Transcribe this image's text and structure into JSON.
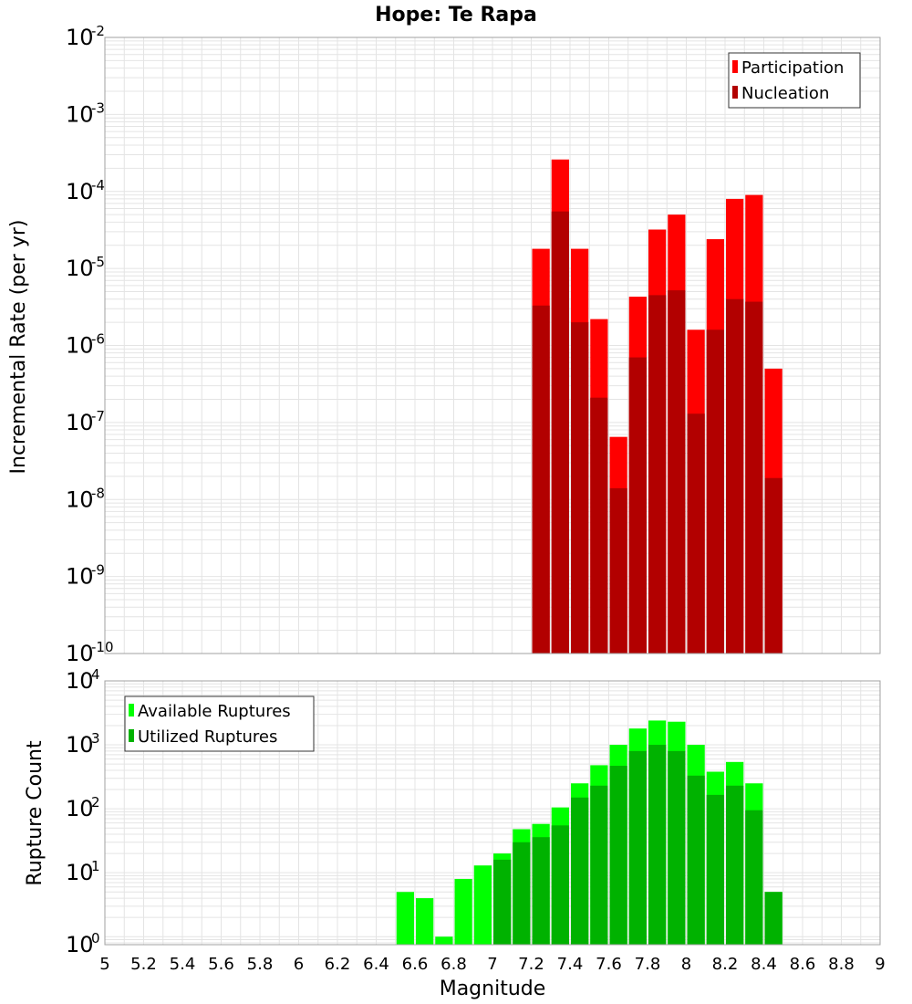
{
  "chart_data": [
    {
      "type": "bar",
      "title": "Hope: Te Rapa",
      "xlabel": "",
      "ylabel": "Incremental Rate (per yr)",
      "y_scale": "log",
      "ylim": [
        1e-10,
        0.01
      ],
      "xlim": [
        5,
        9
      ],
      "bin_width": 0.1,
      "grid": true,
      "legend_position": "top-right",
      "legend": [
        "Participation",
        "Nucleation"
      ],
      "colors": {
        "Participation": "#ff0000",
        "Nucleation": "#b20000"
      },
      "x": [
        7.25,
        7.35,
        7.45,
        7.55,
        7.65,
        7.75,
        7.85,
        7.95,
        8.05,
        8.15,
        8.25,
        8.35,
        8.45
      ],
      "series": [
        {
          "name": "Participation",
          "values": [
            1.8e-05,
            0.00026,
            1.8e-05,
            2.2e-06,
            6.5e-08,
            4.3e-06,
            3.2e-05,
            5e-05,
            1.6e-06,
            2.4e-05,
            8e-05,
            9e-05,
            5e-07
          ]
        },
        {
          "name": "Nucleation",
          "values": [
            3.3e-06,
            5.5e-05,
            2e-06,
            2.1e-07,
            1.4e-08,
            7e-07,
            4.5e-06,
            5.2e-06,
            1.3e-07,
            1.6e-06,
            4e-06,
            3.7e-06,
            1.9e-08
          ]
        }
      ]
    },
    {
      "type": "bar",
      "title": "",
      "xlabel": "Magnitude",
      "ylabel": "Rupture Count",
      "y_scale": "log",
      "ylim": [
        0.75,
        10000.0
      ],
      "xlim": [
        5,
        9
      ],
      "bin_width": 0.1,
      "grid": true,
      "legend_position": "top-left",
      "legend": [
        "Available Ruptures",
        "Utilized Ruptures"
      ],
      "colors": {
        "Available Ruptures": "#00ff00",
        "Utilized Ruptures": "#00b200"
      },
      "x": [
        6.55,
        6.65,
        6.75,
        6.85,
        6.95,
        7.05,
        7.15,
        7.25,
        7.35,
        7.45,
        7.55,
        7.65,
        7.75,
        7.85,
        7.95,
        8.05,
        8.15,
        8.25,
        8.35,
        8.45
      ],
      "series": [
        {
          "name": "Available Ruptures",
          "values": [
            5,
            4,
            1,
            8,
            13,
            20,
            48,
            58,
            105,
            250,
            480,
            1000,
            1800,
            2400,
            2300,
            1000,
            380,
            540,
            250,
            5
          ]
        },
        {
          "name": "Utilized Ruptures",
          "values": [
            0,
            0,
            0,
            0,
            0,
            16,
            30,
            36,
            55,
            150,
            230,
            470,
            800,
            1000,
            800,
            330,
            165,
            230,
            95,
            5
          ]
        }
      ],
      "xticks": [
        "5",
        "5.2",
        "5.4",
        "5.6",
        "5.8",
        "6",
        "6.2",
        "6.4",
        "6.6",
        "6.8",
        "7",
        "7.2",
        "7.4",
        "7.6",
        "7.8",
        "8",
        "8.2",
        "8.4",
        "8.6",
        "8.8",
        "9"
      ]
    }
  ]
}
